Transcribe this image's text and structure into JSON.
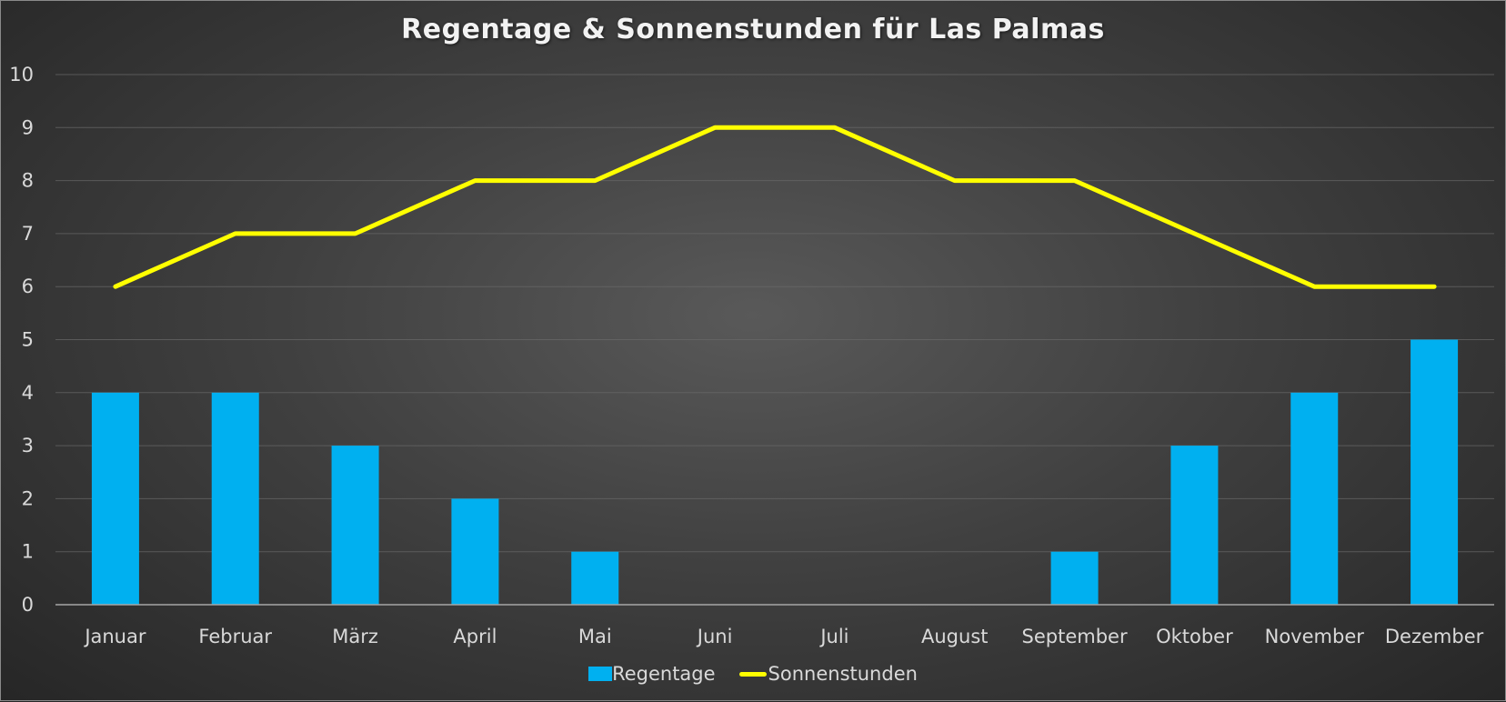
{
  "chart_data": {
    "type": "bar+line",
    "title": "Regentage & Sonnenstunden  für Las Palmas",
    "categories": [
      "Januar",
      "Februar",
      "März",
      "April",
      "Mai",
      "Juni",
      "Juli",
      "August",
      "September",
      "Oktober",
      "November",
      "Dezember"
    ],
    "series": [
      {
        "name": "Regentage",
        "type": "bar",
        "color": "#00B0F0",
        "values": [
          4,
          4,
          3,
          2,
          1,
          0,
          0,
          0,
          1,
          3,
          4,
          5
        ]
      },
      {
        "name": "Sonnenstunden",
        "type": "line",
        "color": "#FFFF00",
        "values": [
          6,
          7,
          7,
          8,
          8,
          9,
          9,
          8,
          8,
          7,
          6,
          6
        ]
      }
    ],
    "xlabel": "",
    "ylabel": "",
    "ylim": [
      0,
      10
    ],
    "yticks": [
      0,
      1,
      2,
      3,
      4,
      5,
      6,
      7,
      8,
      9,
      10
    ],
    "grid": true,
    "legend_position": "bottom"
  },
  "colors": {
    "bar": "#00B0F0",
    "line": "#FFFF00",
    "background_center": "#595959",
    "background_edge": "#262626"
  }
}
